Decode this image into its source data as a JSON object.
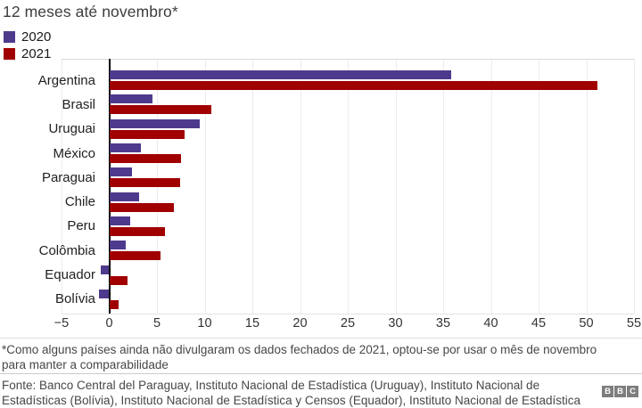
{
  "title": "12 meses até novembro*",
  "legend": {
    "items": [
      {
        "label": "2020",
        "color": "#4E3A8C"
      },
      {
        "label": "2021",
        "color": "#A00000"
      }
    ]
  },
  "chart_data": {
    "type": "bar",
    "orientation": "horizontal",
    "title": "12 meses até novembro*",
    "categories": [
      "Argentina",
      "Brasil",
      "Uruguai",
      "México",
      "Paraguai",
      "Chile",
      "Peru",
      "Colômbia",
      "Equador",
      "Bolívia"
    ],
    "series": [
      {
        "name": "2020",
        "color": "#4E3A8C",
        "values": [
          35.8,
          4.5,
          9.5,
          3.3,
          2.4,
          3.1,
          2.2,
          1.7,
          -0.9,
          -1.1
        ]
      },
      {
        "name": "2021",
        "color": "#A00000",
        "values": [
          51.2,
          10.7,
          7.9,
          7.5,
          7.4,
          6.8,
          5.8,
          5.4,
          1.9,
          1.0
        ]
      }
    ],
    "xlabel": "",
    "ylabel": "",
    "xlim": [
      -5,
      55
    ],
    "xticks": [
      -5,
      0,
      5,
      10,
      15,
      20,
      25,
      30,
      35,
      40,
      45,
      50,
      55
    ],
    "grid": true,
    "legend_position": "top-left"
  },
  "footnote": {
    "line1": "*Como alguns países ainda não divulgaram os dados fechados de 2021, optou-se por usar o mês de novembro",
    "line2": "para manter a comparabilidade"
  },
  "source": {
    "line1": "Fonte: Banco Central del Paraguay, Instituto Nacional de Estadística (Uruguay), Instituto Nacional de",
    "line2": "Estadísticas (Bolívia), Instituto Nacional de Estadística y Censos (Equador), Instituto Nacional de Estadística"
  },
  "logo": {
    "letters": [
      "B",
      "B",
      "C"
    ]
  }
}
